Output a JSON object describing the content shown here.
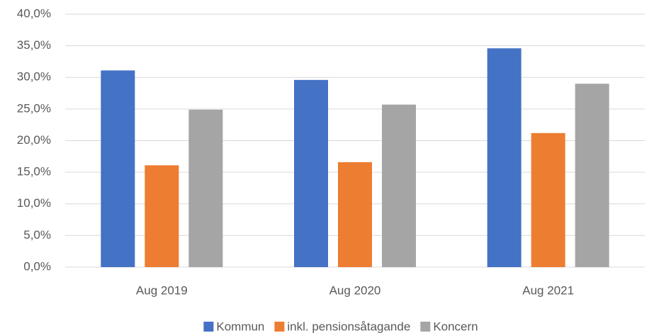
{
  "chart_data": {
    "type": "bar",
    "categories": [
      "Aug 2019",
      "Aug 2020",
      "Aug 2021"
    ],
    "series": [
      {
        "name": "Kommun",
        "color": "#4472c4",
        "values": [
          31.1,
          29.6,
          34.6
        ]
      },
      {
        "name": "inkl. pensionsåtagande",
        "color": "#ed7d31",
        "values": [
          16.1,
          16.6,
          21.2
        ]
      },
      {
        "name": "Koncern",
        "color": "#a5a5a5",
        "values": [
          24.9,
          25.7,
          29.0
        ]
      }
    ],
    "ylim": [
      0,
      40
    ],
    "yticks": [
      {
        "value": 0,
        "label": "0,0%"
      },
      {
        "value": 5,
        "label": "5,0%"
      },
      {
        "value": 10,
        "label": "10,0%"
      },
      {
        "value": 15,
        "label": "15,0%"
      },
      {
        "value": 20,
        "label": "20,0%"
      },
      {
        "value": 25,
        "label": "25,0%"
      },
      {
        "value": 30,
        "label": "30,0%"
      },
      {
        "value": 35,
        "label": "35,0%"
      },
      {
        "value": 40,
        "label": "40,0%"
      }
    ],
    "grid": true,
    "legend": "bottom"
  }
}
